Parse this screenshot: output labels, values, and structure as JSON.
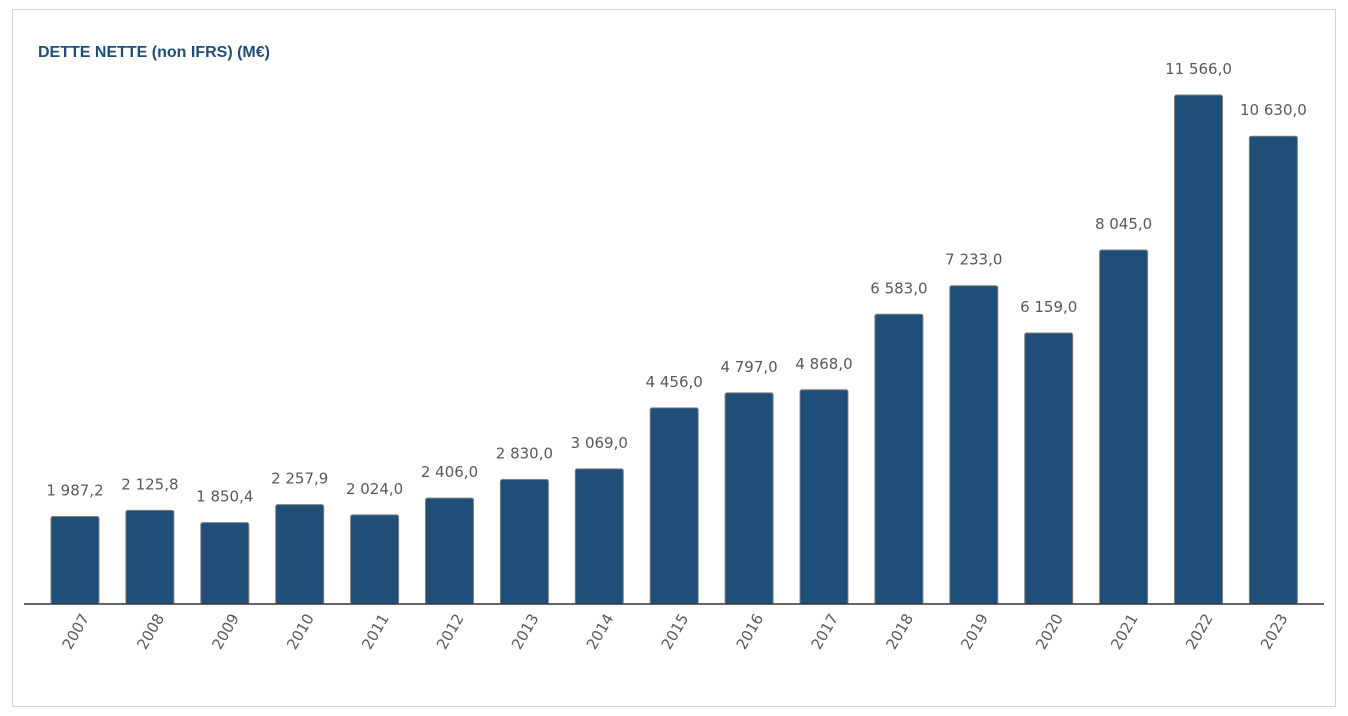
{
  "chart_data": {
    "type": "bar",
    "title": "DETTE NETTE (non IFRS) (M€)",
    "xlabel": "",
    "ylabel": "",
    "categories": [
      "2007",
      "2008",
      "2009",
      "2010",
      "2011",
      "2012",
      "2013",
      "2014",
      "2015",
      "2016",
      "2017",
      "2018",
      "2019",
      "2020",
      "2021",
      "2022",
      "2023"
    ],
    "values": [
      1987.2,
      2125.8,
      1850.4,
      2257.9,
      2024.0,
      2406.0,
      2830.0,
      3069.0,
      4456.0,
      4797.0,
      4868.0,
      6583.0,
      7233.0,
      6159.0,
      8045.0,
      11566.0,
      10630.0
    ],
    "value_labels": [
      "1 987,2",
      "2 125,8",
      "1 850,4",
      "2 257,9",
      "2 024,0",
      "2 406,0",
      "2 830,0",
      "3 069,0",
      "4 456,0",
      "4 797,0",
      "4 868,0",
      "6 583,0",
      "7 233,0",
      "6 159,0",
      "8 045,0",
      "11 566,0",
      "10 630,0"
    ],
    "ylim": [
      0,
      11566
    ],
    "grid": false,
    "legend": "none",
    "bar_color": "#1f4e79",
    "bar_edge_color": "#7f7f7f",
    "label_color": "#595959",
    "title_color": "#1f4e79"
  }
}
